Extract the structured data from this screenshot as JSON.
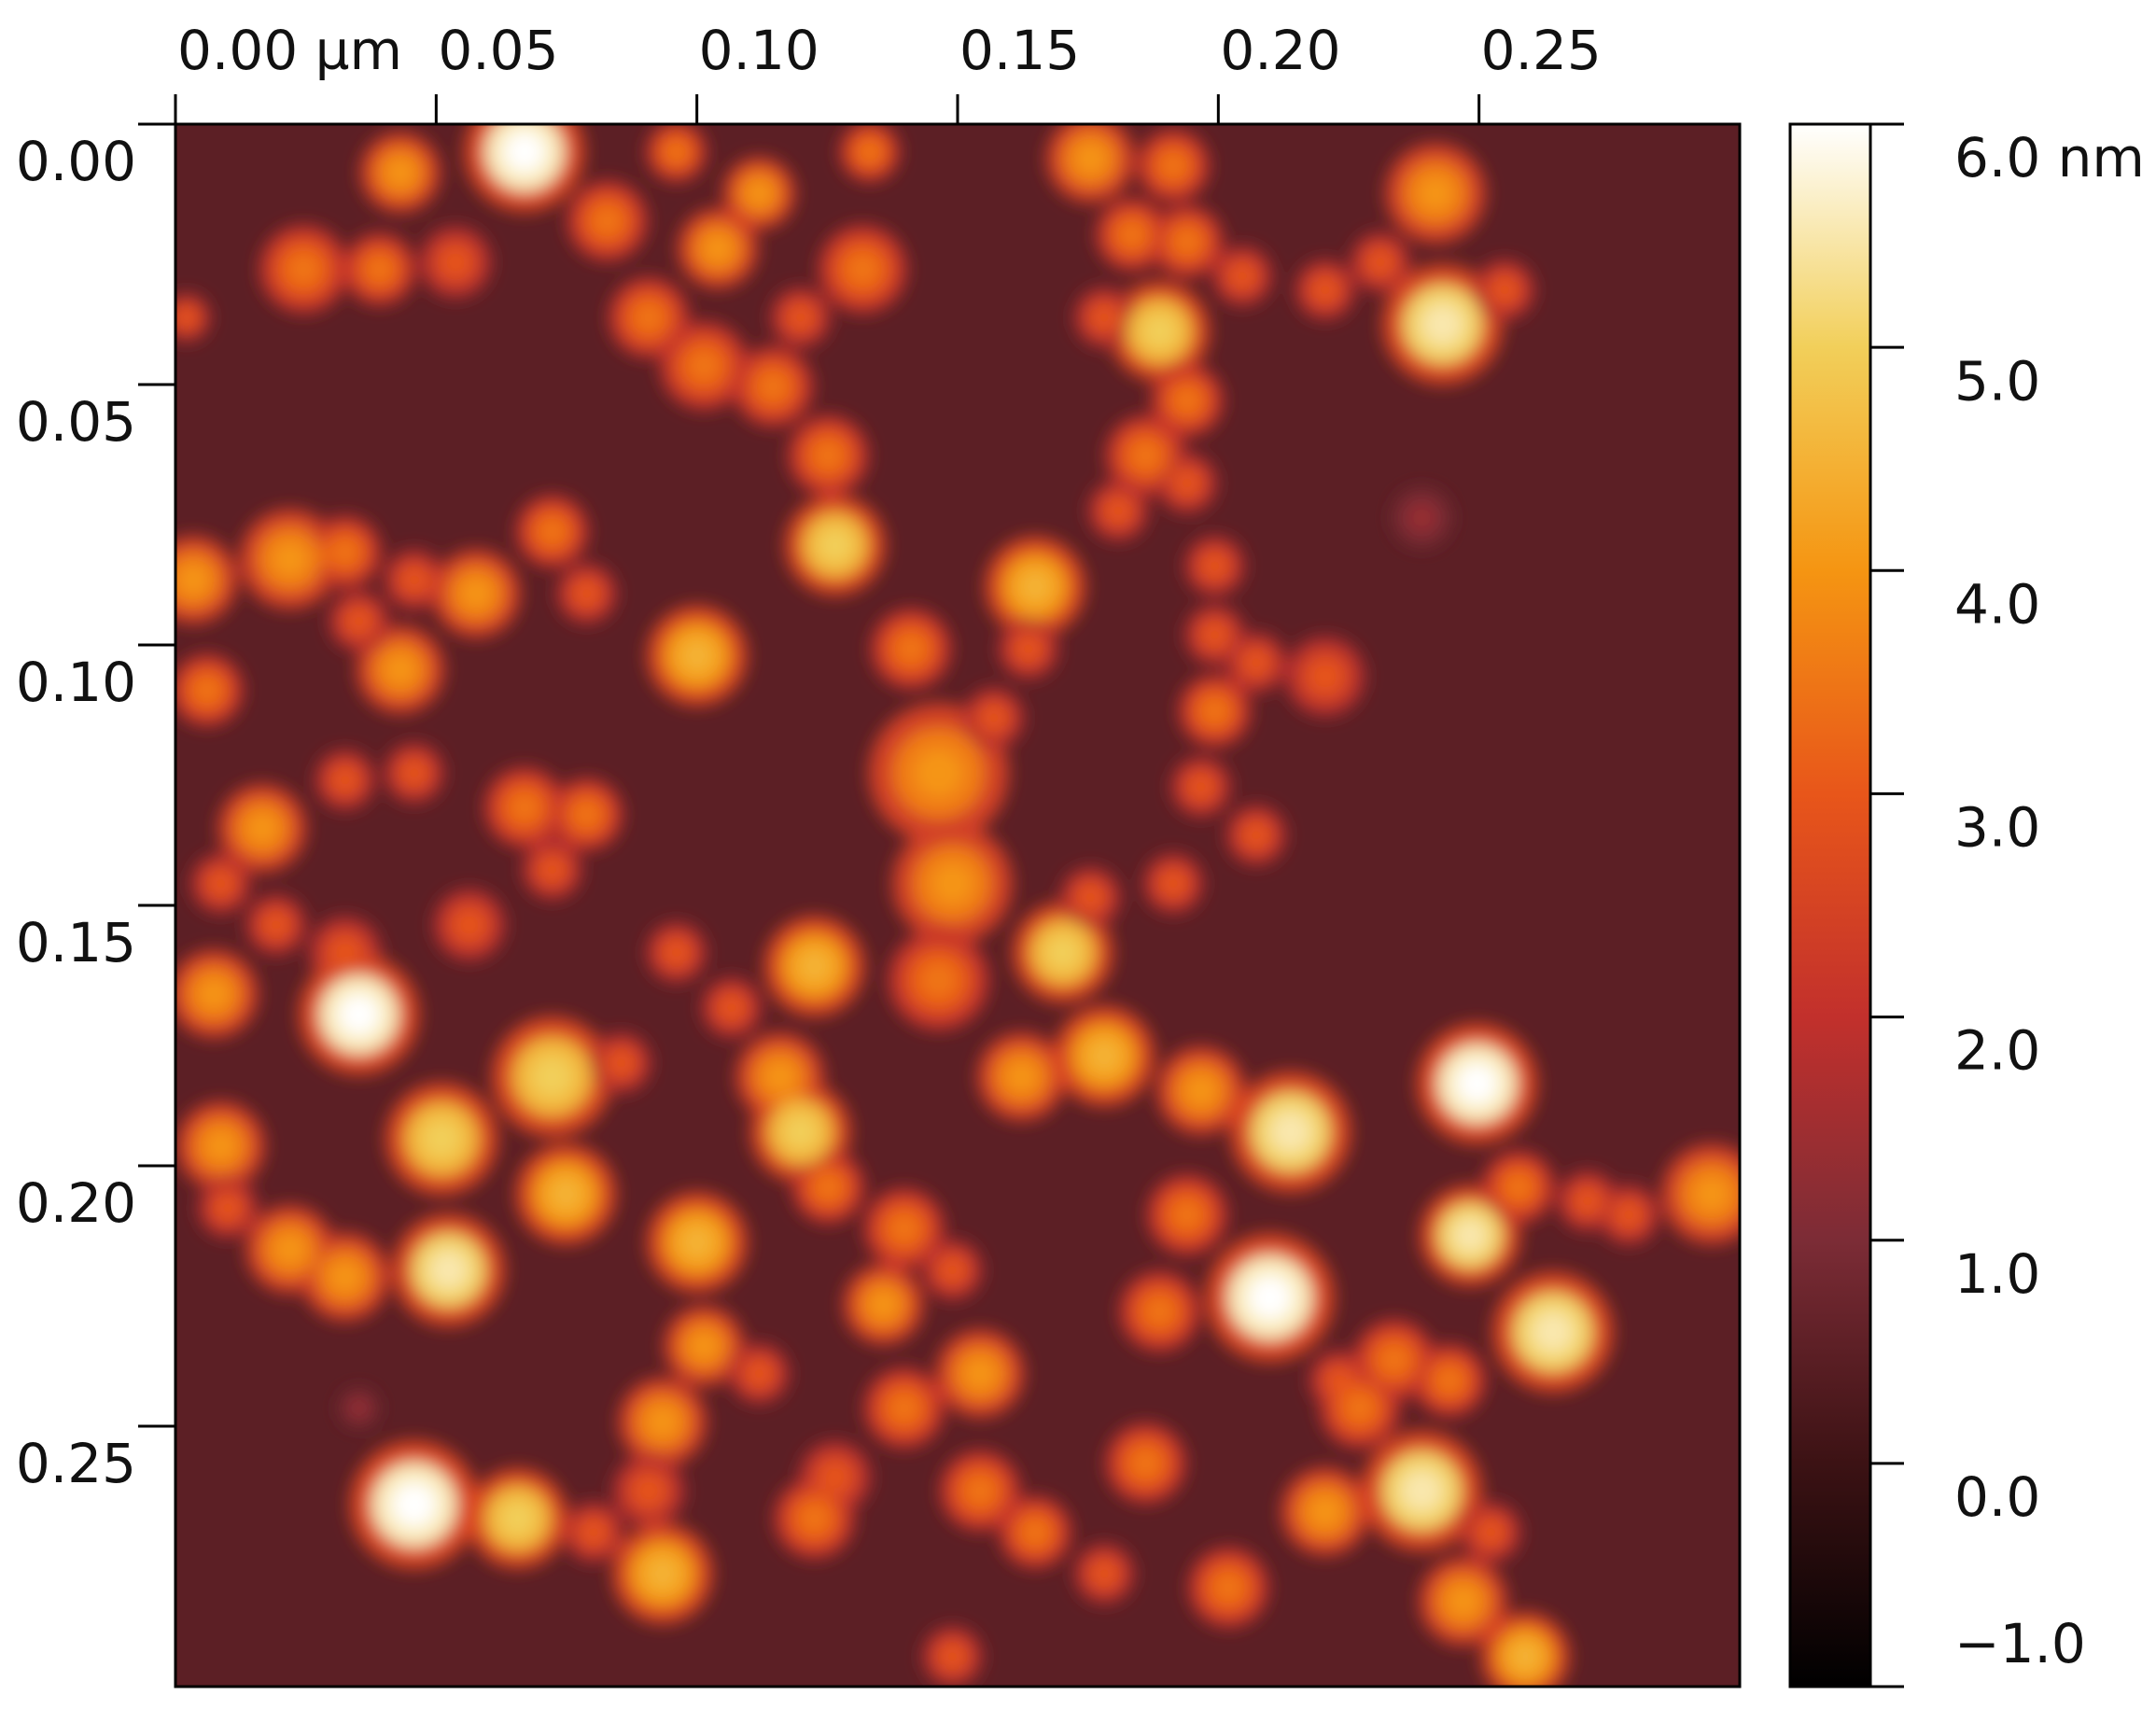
{
  "chart_data": {
    "type": "heatmap",
    "xlim": [
      0,
      0.3
    ],
    "xticks": [
      {
        "value": 0,
        "label": "0.00 µm"
      },
      0.05,
      {
        "value": 0.1,
        "label": "0.10"
      },
      0.15,
      {
        "value": 0.2,
        "label": "0.20"
      },
      0.25
    ],
    "ylim": [
      0,
      0.3
    ],
    "yticks": [
      {
        "value": 0,
        "label": "0.00"
      },
      0.05,
      {
        "value": 0.1,
        "label": "0.10"
      },
      0.15,
      {
        "value": 0.2,
        "label": "0.20"
      },
      0.25
    ],
    "zlim": [
      -1,
      6
    ],
    "zticks": [
      {
        "value": 6,
        "label": "6.0 nm"
      },
      {
        "value": 5,
        "label": "5.0"
      },
      {
        "value": 4,
        "label": "4.0"
      },
      {
        "value": 3,
        "label": "3.0"
      },
      {
        "value": 2,
        "label": "2.0"
      },
      {
        "value": 1,
        "label": "1.0"
      },
      {
        "value": 0,
        "label": "0.0"
      },
      {
        "value": -1,
        "label": "−1.0"
      }
    ],
    "colors": [
      "#000000",
      "#3c1214",
      "#7c2c36",
      "#c2302c",
      "#e8561a",
      "#f59512",
      "#f2cf5a",
      "#ffffff"
    ]
  }
}
